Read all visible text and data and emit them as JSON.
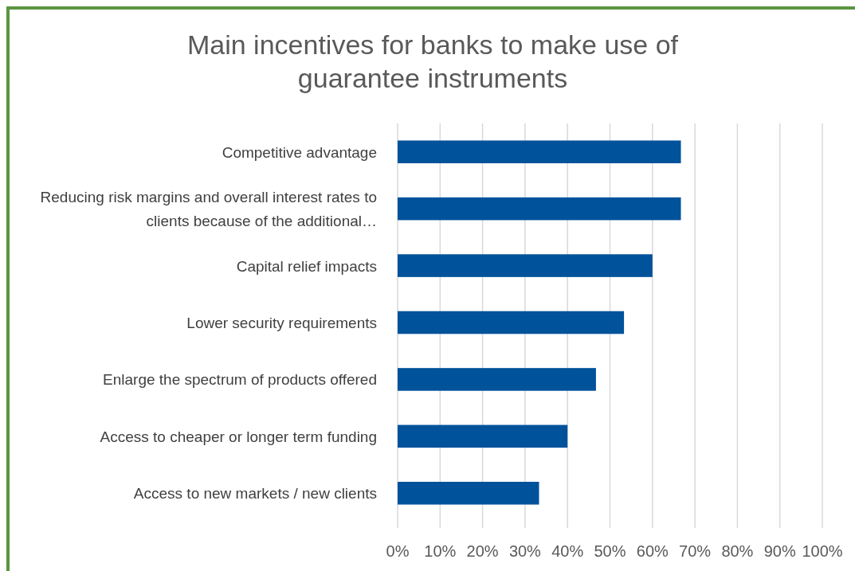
{
  "chart_data": {
    "type": "bar",
    "orientation": "horizontal",
    "title": "Main incentives for banks to make use of guarantee instruments",
    "categories": [
      "Competitive advantage",
      "Reducing risk margins and overall interest rates to clients because of the additional…",
      "Capital relief impacts",
      "Lower security requirements",
      "Enlarge the spectrum of products offered",
      "Access to cheaper or longer term funding",
      "Access to new markets / new clients"
    ],
    "values": [
      66.7,
      66.7,
      60,
      53.3,
      46.7,
      40,
      33.3
    ],
    "color": "#00529b",
    "xlim": [
      0,
      100
    ],
    "xticks": [
      {
        "value": 0,
        "label": "0%"
      },
      {
        "value": 10,
        "label": "10%"
      },
      {
        "value": 20,
        "label": "20%"
      },
      {
        "value": 30,
        "label": "30%"
      },
      {
        "value": 40,
        "label": "40%"
      },
      {
        "value": 50,
        "label": "50%"
      },
      {
        "value": 60,
        "label": "60%"
      },
      {
        "value": 70,
        "label": "70%"
      },
      {
        "value": 80,
        "label": "80%"
      },
      {
        "value": 90,
        "label": "90%"
      },
      {
        "value": 100,
        "label": "100%"
      }
    ],
    "grid": "x"
  }
}
